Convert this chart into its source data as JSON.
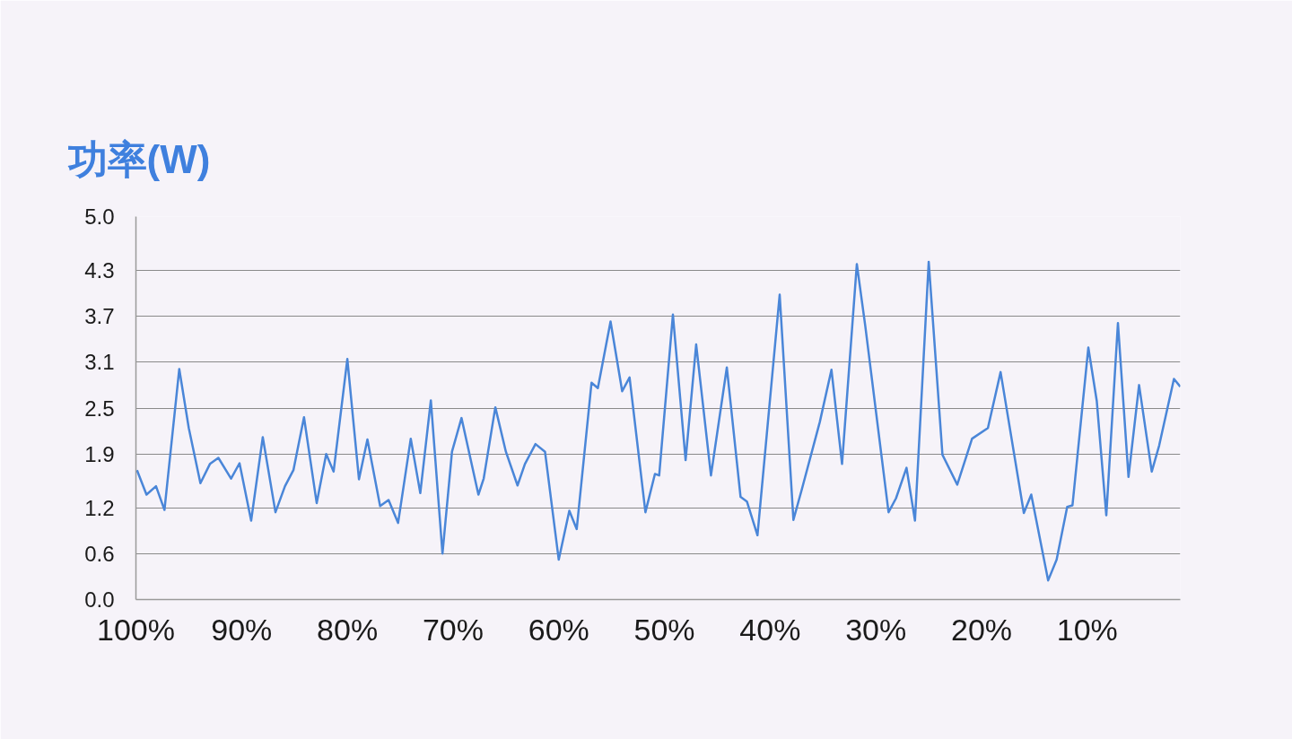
{
  "chart_data": {
    "type": "line",
    "title": "功率(W)",
    "x": [
      99.9,
      99.0,
      98.1,
      97.3,
      95.9,
      95.0,
      93.9,
      93.0,
      92.2,
      91.0,
      90.2,
      89.1,
      88.0,
      86.8,
      85.9,
      85.1,
      84.1,
      82.9,
      82.0,
      81.3,
      80.0,
      78.9,
      78.1,
      76.9,
      76.1,
      75.2,
      74.0,
      73.1,
      72.1,
      71.0,
      70.1,
      69.2,
      67.6,
      67.1,
      66.0,
      65.0,
      63.9,
      63.2,
      62.2,
      61.3,
      60.0,
      59.0,
      58.3,
      56.9,
      56.3,
      55.1,
      54.0,
      53.3,
      51.8,
      50.9,
      50.5,
      49.2,
      48.0,
      47.0,
      45.6,
      44.1,
      42.8,
      42.2,
      41.2,
      39.1,
      37.8,
      37.0,
      35.3,
      34.2,
      33.2,
      31.8,
      31.0,
      28.8,
      28.1,
      27.1,
      26.3,
      25.0,
      23.7,
      22.3,
      20.9,
      19.4,
      18.2,
      16.0,
      15.3,
      13.7,
      12.9,
      11.9,
      11.4,
      9.9,
      9.1,
      8.2,
      7.1,
      6.1,
      5.1,
      3.9,
      3.2,
      1.8,
      1.2
    ],
    "series": [
      {
        "color": "#4a86d8",
        "values": [
          1.69,
          1.37,
          1.48,
          1.17,
          3.01,
          2.24,
          1.52,
          1.77,
          1.85,
          1.58,
          1.78,
          1.03,
          2.12,
          1.14,
          1.48,
          1.69,
          2.38,
          1.26,
          1.9,
          1.67,
          3.14,
          1.57,
          2.09,
          1.22,
          1.3,
          1.0,
          2.1,
          1.39,
          2.6,
          0.6,
          1.93,
          2.37,
          1.37,
          1.58,
          2.51,
          1.93,
          1.49,
          1.77,
          2.03,
          1.93,
          0.52,
          1.16,
          0.92,
          2.83,
          2.76,
          3.63,
          2.72,
          2.9,
          1.14,
          1.64,
          1.62,
          3.72,
          1.82,
          3.33,
          1.62,
          3.03,
          1.34,
          1.28,
          0.84,
          3.98,
          1.04,
          1.44,
          2.32,
          3.0,
          1.77,
          4.38,
          3.57,
          1.14,
          1.32,
          1.72,
          1.03,
          4.41,
          1.89,
          1.5,
          2.1,
          2.24,
          2.97,
          1.13,
          1.37,
          0.25,
          0.52,
          1.21,
          1.23,
          3.29,
          2.59,
          1.1,
          3.61,
          1.6,
          2.8,
          1.67,
          2.01,
          2.88,
          2.78
        ]
      }
    ],
    "xlim": [
      100,
      1.2
    ],
    "xticks": [
      {
        "value": 100,
        "label": "100%"
      },
      {
        "value": 90,
        "label": "90%"
      },
      {
        "value": 80,
        "label": "80%"
      },
      {
        "value": 70,
        "label": "70%"
      },
      {
        "value": 60,
        "label": "60%"
      },
      {
        "value": 50,
        "label": "50%"
      },
      {
        "value": 40,
        "label": "40%"
      },
      {
        "value": 30,
        "label": "30%"
      },
      {
        "value": 20,
        "label": "20%"
      },
      {
        "value": 10,
        "label": "10%"
      }
    ],
    "ylim": [
      0,
      5
    ],
    "yticks": [
      {
        "value": 0,
        "label": "0.0"
      },
      {
        "value": 0.6,
        "label": "0.6"
      },
      {
        "value": 1.2,
        "label": "1.2"
      },
      {
        "value": 1.9,
        "label": "1.9"
      },
      {
        "value": 2.5,
        "label": "2.5"
      },
      {
        "value": 3.1,
        "label": "3.1"
      },
      {
        "value": 3.7,
        "label": "3.7"
      },
      {
        "value": 4.3,
        "label": "4.3"
      },
      {
        "value": 5,
        "label": "5.0"
      }
    ],
    "grid": "y",
    "line_style": "solid"
  }
}
